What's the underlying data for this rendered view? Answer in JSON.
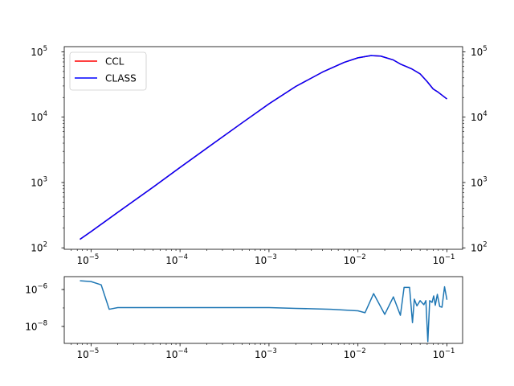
{
  "chart_data": [
    {
      "type": "line",
      "panel": "top",
      "title": "",
      "xlabel": "",
      "ylabel": "",
      "xscale": "log",
      "yscale": "log",
      "xlim": [
        5e-06,
        0.15
      ],
      "ylim": [
        95,
        120000
      ],
      "grid": false,
      "legend_placement": "upper-left",
      "x_tick_labels": [
        {
          "base": "10",
          "exp": "−5",
          "value": 1e-05
        },
        {
          "base": "10",
          "exp": "−4",
          "value": 0.0001
        },
        {
          "base": "10",
          "exp": "−3",
          "value": 0.001
        },
        {
          "base": "10",
          "exp": "−2",
          "value": 0.01
        },
        {
          "base": "10",
          "exp": "−1",
          "value": 0.1
        }
      ],
      "y_tick_labels": [
        {
          "base": "10",
          "exp": "2",
          "value": 100
        },
        {
          "base": "10",
          "exp": "3",
          "value": 1000
        },
        {
          "base": "10",
          "exp": "4",
          "value": 10000
        },
        {
          "base": "10",
          "exp": "5",
          "value": 100000
        }
      ],
      "x": [
        7.5e-06,
        1e-05,
        2e-05,
        5e-05,
        0.0001,
        0.0002,
        0.0005,
        0.001,
        0.002,
        0.004,
        0.007,
        0.01,
        0.014,
        0.018,
        0.025,
        0.03,
        0.04,
        0.05,
        0.06,
        0.07,
        0.08,
        0.1
      ],
      "series": [
        {
          "name": "CCL",
          "color": "#ff0000",
          "values": [
            135,
            177,
            350,
            850,
            1700,
            3350,
            8200,
            16000,
            29500,
            49000,
            69000,
            81000,
            87500,
            86000,
            75000,
            65000,
            55000,
            46000,
            35000,
            27000,
            24000,
            19000
          ]
        },
        {
          "name": "CLASS",
          "color": "#0000ff",
          "values": [
            135,
            177,
            350,
            850,
            1700,
            3350,
            8200,
            16000,
            29500,
            49000,
            69000,
            81000,
            87500,
            86000,
            75000,
            65000,
            55000,
            46000,
            35000,
            27000,
            24000,
            19000
          ]
        }
      ],
      "right_y_tick_labels": [
        {
          "base": "10",
          "exp": "2",
          "value": 100
        },
        {
          "base": "10",
          "exp": "3",
          "value": 1000
        },
        {
          "base": "10",
          "exp": "4",
          "value": 10000
        },
        {
          "base": "10",
          "exp": "5",
          "value": 100000
        }
      ]
    },
    {
      "type": "line",
      "panel": "bottom",
      "title": "",
      "xlabel": "",
      "ylabel": "",
      "xscale": "log",
      "yscale": "log",
      "xlim": [
        5e-06,
        0.15
      ],
      "ylim": [
        1.2e-09,
        5e-06
      ],
      "grid": false,
      "x_tick_labels": [
        {
          "base": "10",
          "exp": "−5",
          "value": 1e-05
        },
        {
          "base": "10",
          "exp": "−4",
          "value": 0.0001
        },
        {
          "base": "10",
          "exp": "−3",
          "value": 0.001
        },
        {
          "base": "10",
          "exp": "−2",
          "value": 0.01
        },
        {
          "base": "10",
          "exp": "−1",
          "value": 0.1
        }
      ],
      "y_tick_labels": [
        {
          "base": "10",
          "exp": "−6",
          "value": 1e-06
        },
        {
          "base": "10",
          "exp": "−8",
          "value": 1e-08
        }
      ],
      "series": [
        {
          "color": "#1f77b4",
          "x": [
            7.5e-06,
            1e-05,
            1.3e-05,
            1.6e-05,
            2e-05,
            5e-05,
            0.0001,
            0.001,
            0.002,
            0.005,
            0.01,
            0.012,
            0.015,
            0.02,
            0.025,
            0.03,
            0.033,
            0.038,
            0.041,
            0.043,
            0.046,
            0.05,
            0.055,
            0.058,
            0.061,
            0.064,
            0.068,
            0.071,
            0.074,
            0.078,
            0.083,
            0.088,
            0.094,
            0.1
          ],
          "y": [
            3e-06,
            2.7e-06,
            1.8e-06,
            8.5e-08,
            1.05e-07,
            1.05e-07,
            1.05e-07,
            1.05e-07,
            9.5e-08,
            8.5e-08,
            7e-08,
            5.5e-08,
            6e-07,
            4.5e-08,
            4e-07,
            4e-08,
            1.3e-06,
            1.3e-06,
            1.6e-08,
            3e-07,
            1.3e-07,
            2.5e-07,
            1.5e-07,
            2.5e-07,
            1.5e-09,
            2.5e-07,
            2e-07,
            4.5e-07,
            1.4e-07,
            5.5e-07,
            1.2e-07,
            1.1e-07,
            1.4e-06,
            2.8e-07
          ]
        }
      ]
    }
  ]
}
